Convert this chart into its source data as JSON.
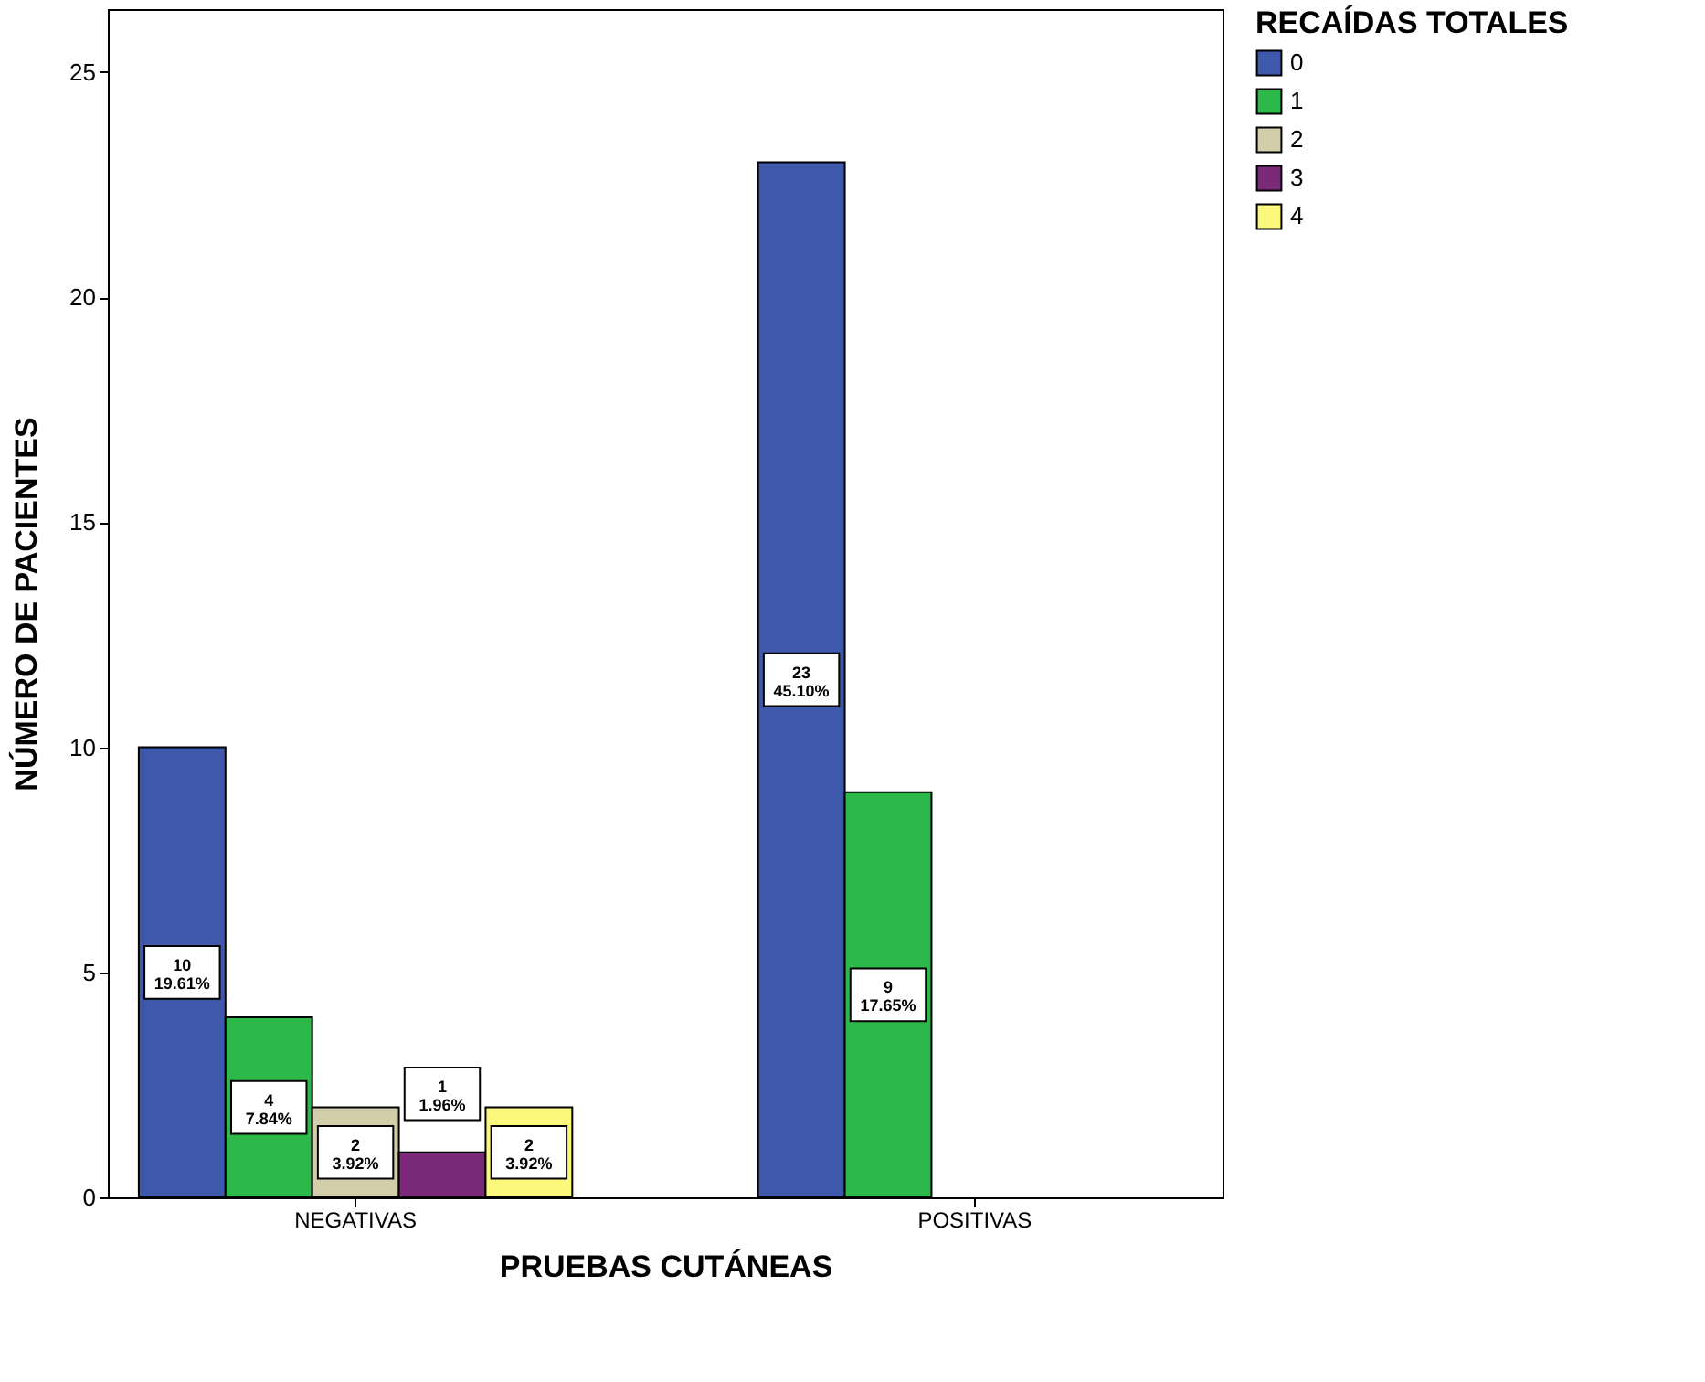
{
  "chart_data": {
    "type": "bar",
    "xlabel": "PRUEBAS CUTÁNEAS",
    "ylabel": "NÚMERO DE PACIENTES",
    "legend_title": "RECAÍDAS TOTALES",
    "categories": [
      "NEGATIVAS",
      "POSITIVAS"
    ],
    "series": [
      {
        "name": "0",
        "color": "#3e58ac",
        "values": [
          10,
          23
        ],
        "value_labels": [
          "10\n19.61%",
          "23\n45.10%"
        ]
      },
      {
        "name": "1",
        "color": "#2db84a",
        "values": [
          4,
          9
        ],
        "value_labels": [
          "4\n7.84%",
          "9\n17.65%"
        ]
      },
      {
        "name": "2",
        "color": "#d3ceaa",
        "values": [
          2,
          null
        ],
        "value_labels": [
          "2\n3.92%",
          null
        ]
      },
      {
        "name": "3",
        "color": "#7b2a7a",
        "values": [
          1,
          null
        ],
        "value_labels": [
          "1\n1.96%",
          null
        ]
      },
      {
        "name": "4",
        "color": "#fbf87b",
        "values": [
          2,
          null
        ],
        "value_labels": [
          "2\n3.92%",
          null
        ]
      }
    ],
    "ylim": [
      0,
      26.4
    ],
    "yticks": [
      0,
      5,
      10,
      15,
      20,
      25
    ],
    "grid": false,
    "legend": "right"
  }
}
